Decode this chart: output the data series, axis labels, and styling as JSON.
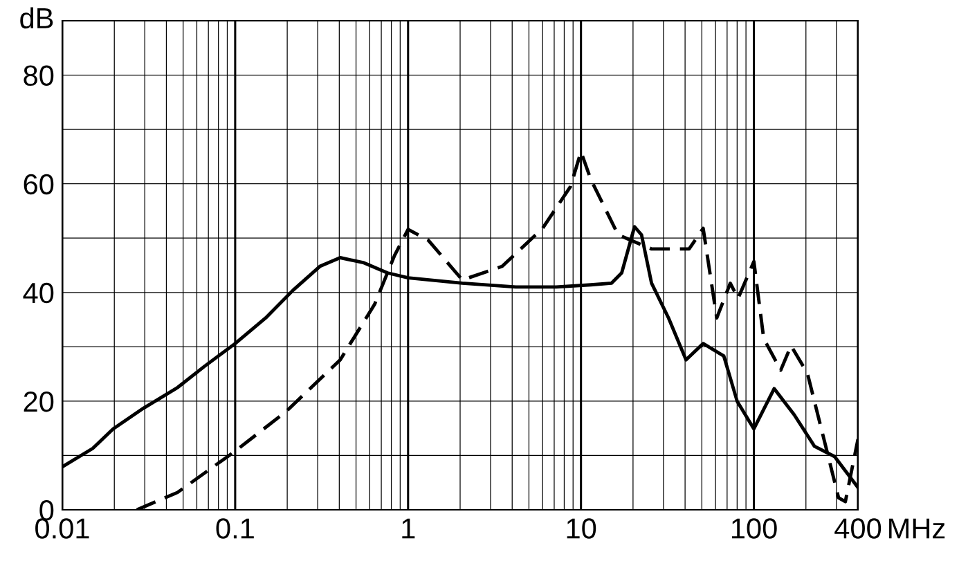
{
  "chart_data": {
    "type": "line",
    "xlabel": "MHz",
    "ylabel": "dB",
    "log": "x",
    "grid": true,
    "xlim": [
      0.01,
      400
    ],
    "ylim": [
      0,
      90
    ],
    "xticks": [
      0.01,
      {
        "value": 0.02,
        "label": null
      },
      {
        "value": 0.03,
        "label": null
      },
      {
        "value": 0.04,
        "label": null
      },
      {
        "value": 0.05,
        "label": null
      },
      {
        "value": 0.06,
        "label": null
      },
      {
        "value": 0.07,
        "label": null
      },
      {
        "value": 0.08,
        "label": null
      },
      {
        "value": 0.09,
        "label": null
      },
      0.1,
      {
        "value": 0.2,
        "label": null
      },
      {
        "value": 0.3,
        "label": null
      },
      {
        "value": 0.4,
        "label": null
      },
      {
        "value": 0.5,
        "label": null
      },
      {
        "value": 0.6,
        "label": null
      },
      {
        "value": 0.7,
        "label": null
      },
      {
        "value": 0.8,
        "label": null
      },
      {
        "value": 0.9,
        "label": null
      },
      1,
      {
        "value": 2,
        "label": null
      },
      {
        "value": 3,
        "label": null
      },
      {
        "value": 4,
        "label": null
      },
      {
        "value": 5,
        "label": null
      },
      {
        "value": 6,
        "label": null
      },
      {
        "value": 7,
        "label": null
      },
      {
        "value": 8,
        "label": null
      },
      {
        "value": 9,
        "label": null
      },
      10,
      {
        "value": 20,
        "label": null
      },
      {
        "value": 30,
        "label": null
      },
      {
        "value": 40,
        "label": null
      },
      {
        "value": 50,
        "label": null
      },
      {
        "value": 60,
        "label": null
      },
      {
        "value": 70,
        "label": null
      },
      {
        "value": 80,
        "label": null
      },
      {
        "value": 90,
        "label": null
      },
      100,
      {
        "value": 200,
        "label": null
      },
      {
        "value": 300,
        "label": null
      },
      400
    ],
    "yticks": [
      0,
      {
        "value": 10,
        "label": null
      },
      20,
      {
        "value": 30,
        "label": null
      },
      40,
      {
        "value": 50,
        "label": null
      },
      60,
      {
        "value": 70,
        "label": null
      },
      80,
      {
        "value": 90,
        "label": null
      }
    ],
    "series": [
      {
        "color": "#000000",
        "line_style": "solid",
        "x": [
          0.01,
          0.015,
          0.0197,
          0.0295,
          0.0464,
          0.0664,
          0.1,
          0.15,
          0.216,
          0.309,
          0.405,
          0.55,
          0.76,
          1,
          2.06,
          4.2,
          7.2,
          11.4,
          15,
          17.2,
          20.4,
          22.4,
          25.6,
          32.1,
          40.5,
          50.9,
          67,
          80,
          100,
          131,
          171,
          224,
          293,
          400
        ],
        "values": [
          7.9,
          11.3,
          14.9,
          18.7,
          22.5,
          26.4,
          30.6,
          35.3,
          40.4,
          44.8,
          46.4,
          45.5,
          43.6,
          42.7,
          41.7,
          41.0,
          41.0,
          41.4,
          41.7,
          43.6,
          52.1,
          50.6,
          41.7,
          35.3,
          27.6,
          30.6,
          28.3,
          20.0,
          14.9,
          22.3,
          17.5,
          11.7,
          9.8,
          4.1
        ]
      },
      {
        "color": "#000000",
        "line_style": "dashed",
        "x": [
          0.027,
          0.0464,
          0.1,
          0.197,
          0.405,
          0.64,
          0.835,
          1,
          1.31,
          2.06,
          3.5,
          6,
          8.7,
          10,
          11.4,
          16.4,
          25.6,
          42.2,
          50.9,
          61,
          73,
          81,
          100,
          114,
          143,
          164,
          204,
          257,
          309,
          338,
          400
        ],
        "values": [
          0,
          3.2,
          10.8,
          18.1,
          27.6,
          37.8,
          46.8,
          51.6,
          49.6,
          42.3,
          44.8,
          51.8,
          59.5,
          65.9,
          60.8,
          50.6,
          48.0,
          48.0,
          51.8,
          35.3,
          41.7,
          38.9,
          45.7,
          31.5,
          25.7,
          30.2,
          25.1,
          12.4,
          2.2,
          1.5,
          13.0
        ]
      }
    ]
  }
}
